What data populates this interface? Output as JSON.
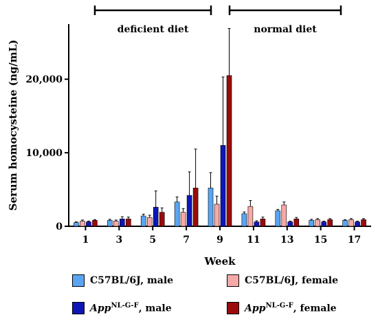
{
  "chart_data": {
    "type": "bar",
    "xlabel": "Week",
    "ylabel": "Serum homocysteine (ng/mL)",
    "ylim": [
      0,
      27500
    ],
    "yticks": [
      0,
      10000,
      20000
    ],
    "ytick_labels": [
      "0",
      "10,000",
      "20,000"
    ],
    "categories": [
      "1",
      "3",
      "5",
      "7",
      "9",
      "11",
      "13",
      "15",
      "17"
    ],
    "series": [
      {
        "name": "C57BL/6J, male",
        "color": "#5aa5f3",
        "values": [
          500,
          800,
          1400,
          3300,
          5200,
          1700,
          2100,
          800,
          800
        ],
        "errors": [
          100,
          150,
          250,
          700,
          2100,
          250,
          200,
          150,
          100
        ]
      },
      {
        "name": "C57BL/6J, female",
        "color": "#f6aaa8",
        "values": [
          700,
          700,
          1200,
          1900,
          3000,
          2700,
          2900,
          900,
          900
        ],
        "errors": [
          150,
          150,
          300,
          500,
          1100,
          800,
          400,
          150,
          150
        ]
      },
      {
        "name": "AppNL-G-F, male",
        "color": "#0f16b8",
        "values": [
          600,
          1000,
          2600,
          4200,
          11000,
          600,
          600,
          600,
          600
        ],
        "errors": [
          100,
          300,
          2200,
          3200,
          9300,
          150,
          100,
          100,
          100
        ]
      },
      {
        "name": "AppNL-G-F, female",
        "color": "#9b0b0b",
        "values": [
          800,
          1000,
          1900,
          5200,
          20500,
          1000,
          1000,
          900,
          900
        ],
        "errors": [
          100,
          250,
          600,
          5300,
          6400,
          250,
          200,
          150,
          150
        ]
      }
    ],
    "annotations": [
      "deficient diet",
      "normal diet"
    ],
    "legend_position": "bottom"
  },
  "legend": {
    "items": [
      {
        "plain": "C57BL/6J, male",
        "color": "#5aa5f3"
      },
      {
        "plain": "C57BL/6J, female",
        "color": "#f6aaa8"
      },
      {
        "gene": "App",
        "sup": "NL-G-F",
        "suffix": ", male",
        "color": "#0f16b8"
      },
      {
        "gene": "App",
        "sup": "NL-G-F",
        "suffix": ", female",
        "color": "#9b0b0b"
      }
    ]
  }
}
